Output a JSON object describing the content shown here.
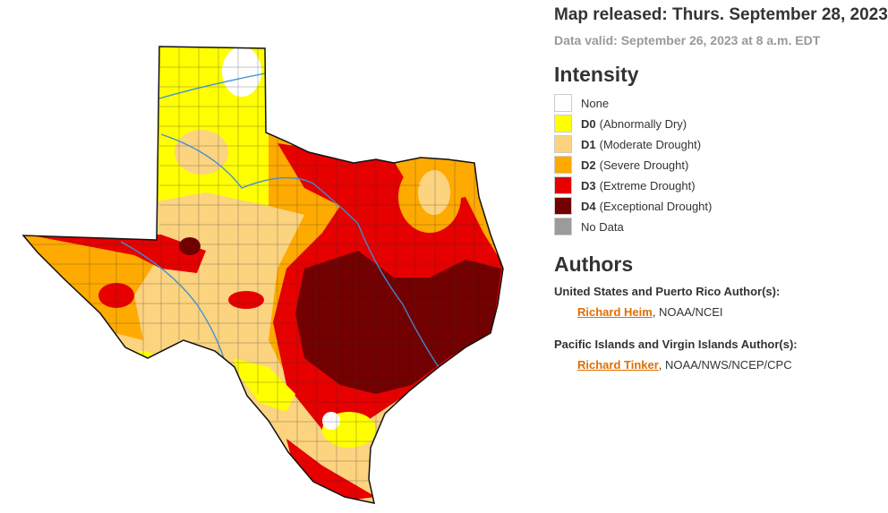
{
  "header": {
    "released": "Map released: Thurs. September 28, 2023",
    "valid": "Data valid: September 26, 2023 at 8 a.m. EDT"
  },
  "legend": {
    "title": "Intensity",
    "items": [
      {
        "label": "None",
        "color": "#ffffff"
      },
      {
        "code": "D0",
        "label": "(Abnormally Dry)",
        "color": "#ffff00"
      },
      {
        "code": "D1",
        "label": "(Moderate Drought)",
        "color": "#fcd37f"
      },
      {
        "code": "D2",
        "label": "(Severe Drought)",
        "color": "#ffaa00"
      },
      {
        "code": "D3",
        "label": "(Extreme Drought)",
        "color": "#e60000"
      },
      {
        "code": "D4",
        "label": "(Exceptional Drought)",
        "color": "#730000"
      },
      {
        "label": "No Data",
        "color": "#9b9b9b"
      }
    ]
  },
  "authors": {
    "title": "Authors",
    "groups": [
      {
        "heading": "United States and Puerto Rico Author(s):",
        "name": "Richard Heim",
        "org": ", NOAA/NCEI"
      },
      {
        "heading": "Pacific Islands and Virgin Islands Author(s):",
        "name": "Richard Tinker",
        "org": ", NOAA/NWS/NCEP/CPC"
      }
    ]
  }
}
